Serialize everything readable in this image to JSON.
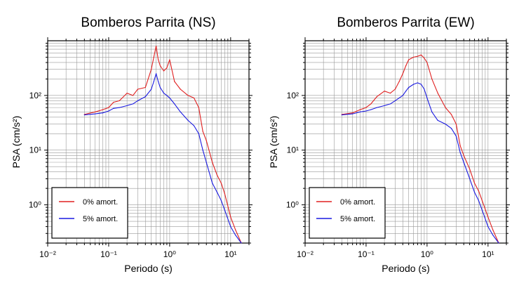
{
  "chart_data": [
    {
      "type": "line",
      "title": "Bomberos Parrita (NS)",
      "xlabel": "Periodo (s)",
      "ylabel": "PSA (cm/s²)",
      "xscale": "log",
      "yscale": "log",
      "xlim": [
        0.01,
        20
      ],
      "ylim": [
        0.2,
        1000
      ],
      "grid": true,
      "legend_position": "bottom-left",
      "x_tick_labels": [
        "10⁻²",
        "10⁻¹",
        "10⁰",
        "10¹"
      ],
      "y_tick_labels": [
        "10⁰",
        "10¹",
        "10²"
      ],
      "series": [
        {
          "name": "0% amort.",
          "color": "#e02020",
          "x": [
            0.04,
            0.06,
            0.08,
            0.1,
            0.12,
            0.15,
            0.2,
            0.25,
            0.3,
            0.4,
            0.5,
            0.55,
            0.6,
            0.65,
            0.7,
            0.8,
            0.9,
            1.0,
            1.2,
            1.5,
            2.0,
            2.5,
            3.0,
            3.5,
            4.0,
            5.0,
            6.0,
            7.0,
            8.0,
            10.0,
            12.0,
            15.0
          ],
          "values": [
            45,
            50,
            55,
            60,
            75,
            80,
            110,
            100,
            130,
            140,
            300,
            500,
            800,
            450,
            350,
            280,
            320,
            450,
            180,
            130,
            100,
            90,
            60,
            22,
            15,
            6,
            3.5,
            2.5,
            1.6,
            0.6,
            0.35,
            0.2
          ]
        },
        {
          "name": "5% amort.",
          "color": "#1a1ae0",
          "x": [
            0.04,
            0.06,
            0.08,
            0.1,
            0.12,
            0.15,
            0.2,
            0.25,
            0.3,
            0.4,
            0.5,
            0.55,
            0.6,
            0.65,
            0.7,
            0.8,
            0.9,
            1.0,
            1.2,
            1.5,
            2.0,
            2.5,
            3.0,
            3.5,
            4.0,
            5.0,
            6.0,
            7.0,
            8.0,
            10.0,
            12.0,
            15.0
          ],
          "values": [
            44,
            46,
            48,
            52,
            58,
            60,
            65,
            70,
            80,
            95,
            130,
            180,
            250,
            180,
            140,
            110,
            100,
            90,
            70,
            50,
            35,
            28,
            20,
            10,
            6,
            2.5,
            1.7,
            1.2,
            0.8,
            0.4,
            0.28,
            0.2
          ]
        }
      ]
    },
    {
      "type": "line",
      "title": "Bomberos Parrita (EW)",
      "xlabel": "Periodo (s)",
      "ylabel": "PSA (cm/s²)",
      "xscale": "log",
      "yscale": "log",
      "xlim": [
        0.01,
        20
      ],
      "ylim": [
        0.2,
        1000
      ],
      "grid": true,
      "legend_position": "bottom-left",
      "x_tick_labels": [
        "10⁻²",
        "10⁻¹",
        "10⁰",
        "10¹"
      ],
      "y_tick_labels": [
        "10⁰",
        "10¹",
        "10²"
      ],
      "series": [
        {
          "name": "0% amort.",
          "color": "#e02020",
          "x": [
            0.04,
            0.06,
            0.08,
            0.1,
            0.12,
            0.15,
            0.2,
            0.25,
            0.3,
            0.35,
            0.4,
            0.45,
            0.5,
            0.6,
            0.7,
            0.8,
            0.9,
            1.0,
            1.2,
            1.5,
            2.0,
            2.5,
            3.0,
            3.5,
            4.0,
            5.0,
            6.0,
            7.0,
            8.0,
            10.0,
            12.0,
            15.0
          ],
          "values": [
            45,
            48,
            55,
            60,
            70,
            95,
            120,
            110,
            130,
            180,
            250,
            350,
            450,
            500,
            520,
            550,
            480,
            400,
            200,
            110,
            60,
            45,
            30,
            12,
            8,
            4.5,
            2.5,
            1.8,
            1.2,
            0.6,
            0.35,
            0.2
          ]
        },
        {
          "name": "5% amort.",
          "color": "#1a1ae0",
          "x": [
            0.04,
            0.06,
            0.08,
            0.1,
            0.12,
            0.15,
            0.2,
            0.25,
            0.3,
            0.35,
            0.4,
            0.45,
            0.5,
            0.6,
            0.7,
            0.8,
            0.9,
            1.0,
            1.2,
            1.5,
            2.0,
            2.5,
            3.0,
            3.5,
            4.0,
            5.0,
            6.0,
            7.0,
            8.0,
            10.0,
            12.0,
            15.0
          ],
          "values": [
            44,
            46,
            50,
            52,
            55,
            60,
            65,
            70,
            80,
            90,
            100,
            120,
            140,
            160,
            170,
            160,
            130,
            90,
            50,
            35,
            30,
            25,
            18,
            9,
            6,
            3,
            1.7,
            1.2,
            0.8,
            0.4,
            0.28,
            0.2
          ]
        }
      ]
    }
  ]
}
